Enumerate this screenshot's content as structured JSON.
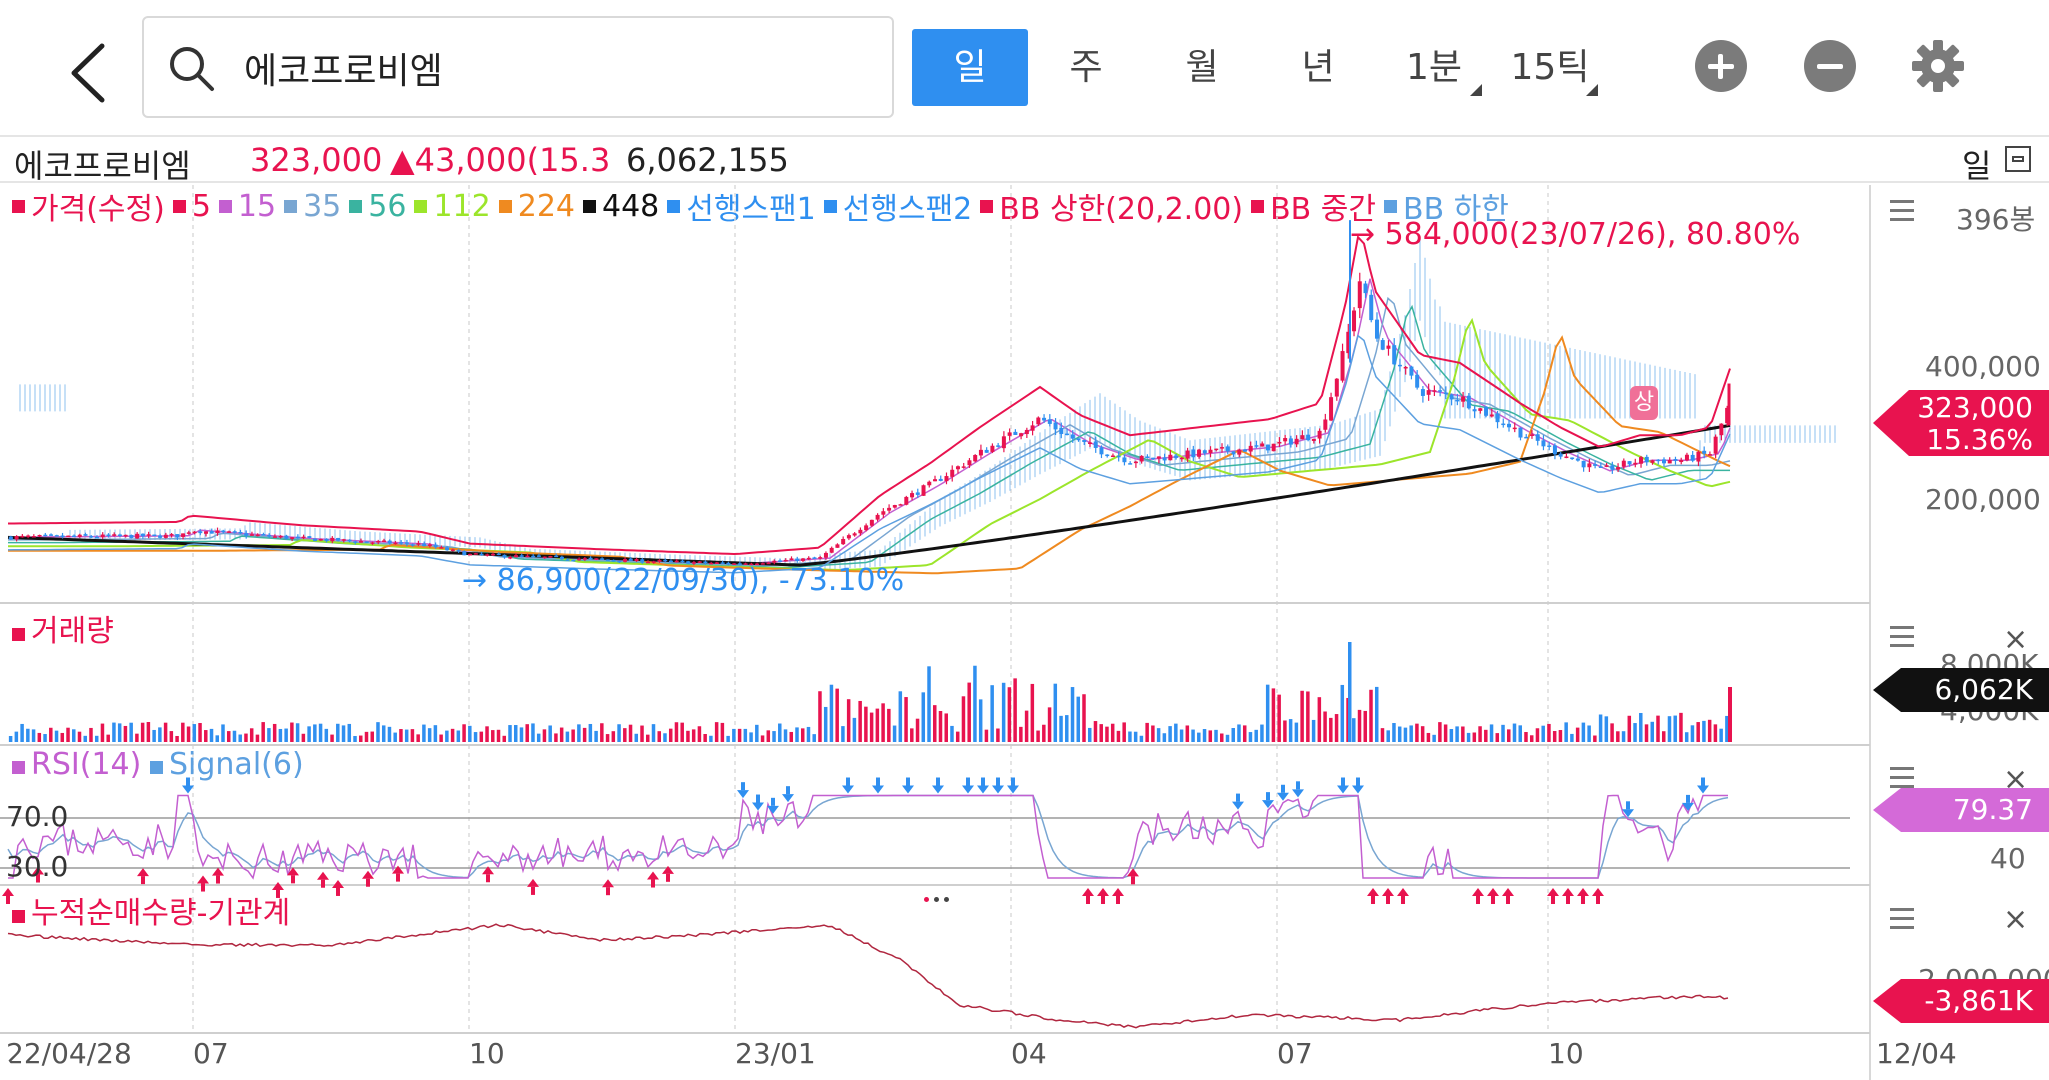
{
  "search": {
    "query": "에코프로비엠"
  },
  "periods": [
    {
      "label": "일",
      "active": true
    },
    {
      "label": "주"
    },
    {
      "label": "월"
    },
    {
      "label": "년"
    },
    {
      "label": "1분",
      "dropdown": true
    },
    {
      "label": "15틱",
      "dropdown": true
    }
  ],
  "info": {
    "name": "에코프로비엠",
    "price": "323,000",
    "change": "▲43,000(15.3",
    "volume": "6,062,155",
    "period": "일"
  },
  "legend": [
    {
      "label": "가격(수정)",
      "color": "#e8134f"
    },
    {
      "label": "5",
      "color": "#e8134f"
    },
    {
      "label": "15",
      "color": "#c35fd0"
    },
    {
      "label": "35",
      "color": "#79a6d2"
    },
    {
      "label": "56",
      "color": "#3ab3a0"
    },
    {
      "label": "112",
      "color": "#9ce52b"
    },
    {
      "label": "224",
      "color": "#ef8a20"
    },
    {
      "label": "448",
      "color": "#111111"
    },
    {
      "label": "선행스팬1",
      "color": "#2f8ff0"
    },
    {
      "label": "선행스팬2",
      "color": "#2f8ff0"
    },
    {
      "label": "BB 상한(20,2.00)",
      "color": "#e8134f"
    },
    {
      "label": "BB 중간",
      "color": "#e8134f"
    },
    {
      "label": "BB 하한",
      "color": "#5da0e0"
    }
  ],
  "price_panel": {
    "bar_count": "396봉",
    "high_label": "→ 584,000(23/07/26), 80.80%",
    "low_label": "→ 86,900(22/09/30), -73.10%",
    "axis_ticks": [
      "400,000",
      "200,000"
    ],
    "current_price": "323,000",
    "current_change": "15.36%",
    "limit_up_badge": "상"
  },
  "volume_panel": {
    "title": "거래량",
    "axis_ticks": [
      "8,000K",
      "4,000K"
    ],
    "current": "6,062K"
  },
  "rsi_panel": {
    "title_rsi": "RSI(14)",
    "title_signal": "Signal(6)",
    "level_high": "70.0",
    "level_low": "30.0",
    "axis_tick": "40",
    "current": "79.37"
  },
  "inst_panel": {
    "title": "누적순매수량-기관계",
    "axis_tick": "-2,000,000",
    "current": "-3,861K"
  },
  "x_axis": {
    "labels": [
      "22/04/28",
      "07",
      "10",
      "23/01",
      "04",
      "07",
      "10",
      "12/04"
    ]
  },
  "close_symbol": "×",
  "colors": {
    "up": "#e8134f",
    "down": "#2f8ff0",
    "rsi": "#c35fd0",
    "accent": "#2f8ff0"
  },
  "chart_data": {
    "type": "candlestick",
    "title": "에코프로비엠",
    "price_range": [
      40000,
      620000
    ],
    "points": [
      {
        "date": "22/04/28",
        "close": 130000
      },
      {
        "date": "22/07",
        "close": 125000
      },
      {
        "date": "22/09/30",
        "close": 86900
      },
      {
        "date": "23/01",
        "close": 95000
      },
      {
        "date": "23/03",
        "close": 190000
      },
      {
        "date": "23/04",
        "close": 250000
      },
      {
        "date": "23/07/26",
        "close": 584000
      },
      {
        "date": "23/10",
        "close": 230000
      },
      {
        "date": "23/12/04",
        "close": 323000
      }
    ],
    "rsi_latest": 79.37,
    "volume_latest": 6062155
  }
}
